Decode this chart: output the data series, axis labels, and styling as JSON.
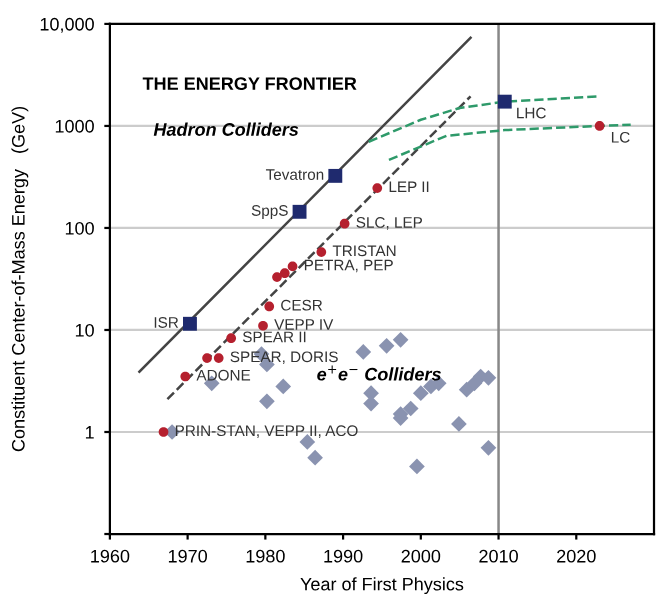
{
  "chart_data": {
    "type": "scatter",
    "title": "THE ENERGY FRONTIER",
    "xlabel": "Year of First Physics",
    "ylabel": "Constituent Center-of-Mass Energy   (GeV)",
    "log": "y",
    "xlim": [
      1960,
      2030
    ],
    "ylim": [
      0.1,
      10000
    ],
    "xticks": [
      1960,
      1970,
      1980,
      1990,
      2000,
      2010,
      2020
    ],
    "yticks": [
      {
        "value": 0.1,
        "label": null
      },
      1,
      10,
      100,
      1000,
      {
        "value": 10000,
        "label": "10,000"
      }
    ],
    "grid": "y",
    "legend": false,
    "ref_lines": [
      {
        "axis": "x",
        "value": 2010,
        "color": "#888888"
      }
    ],
    "series": [
      {
        "type": "line",
        "color": "#444444",
        "line_style": "solid",
        "marker": "none",
        "x": [
          1963.8,
          2006.4
        ],
        "values": [
          3.9,
          7300
        ]
      },
      {
        "type": "line",
        "color": "#444444",
        "line_style": "dashed",
        "marker": "none",
        "x": [
          1967.4,
          2006.4
        ],
        "values": [
          2.1,
          1950
        ]
      },
      {
        "type": "line",
        "color": "#2e9a6a",
        "line_style": "dashed",
        "marker": "none",
        "x": [
          1993.3,
          2000,
          2005,
          2010.8,
          2022.8
        ],
        "values": [
          700,
          1150,
          1500,
          1730,
          1950
        ]
      },
      {
        "type": "line",
        "color": "#2e9a6a",
        "line_style": "dashed",
        "marker": "none",
        "x": [
          1995.9,
          2003.3,
          2010.8,
          2023,
          2027
        ],
        "values": [
          465,
          800,
          910,
          1000,
          1030
        ]
      },
      {
        "color": "#8a93b0",
        "marker": "diamond",
        "x": [
          1968,
          1973.1,
          1979.5,
          1980.2,
          1980.2,
          1982.3,
          1985.4,
          1986.4,
          1992.6,
          1995.6,
          1997.4,
          1993.6,
          1993.6,
          1997.4,
          1997.4,
          1998.7,
          2000,
          2001.3,
          2002.3,
          1999.5,
          2004.9,
          2005.9,
          2006.9,
          2007.7,
          2008.7,
          2008.7
        ],
        "values": [
          1.0,
          3.0,
          5.8,
          4.6,
          2.0,
          2.8,
          0.8,
          0.56,
          6.1,
          7.0,
          8.0,
          2.4,
          1.9,
          1.5,
          1.37,
          1.7,
          2.4,
          2.8,
          3.0,
          0.46,
          1.2,
          2.6,
          3.0,
          3.5,
          3.4,
          0.7
        ]
      },
      {
        "color": "#b5202e",
        "marker": "circle",
        "x": [
          1966.9,
          1969.7,
          1972.5,
          1974,
          1975.6,
          1979.7,
          1980.5,
          1981.5,
          1982.5,
          1983.5,
          1987.2,
          1990.2,
          1994.4,
          2023
        ],
        "values": [
          1,
          3.5,
          5.3,
          5.3,
          8.3,
          11,
          17,
          33,
          36,
          42,
          58,
          110,
          246,
          1000
        ]
      },
      {
        "color": "#1f2a6e",
        "marker": "square",
        "x": [
          1970.3,
          1984.4,
          1989,
          2010.8
        ],
        "values": [
          11.5,
          144,
          324,
          1730
        ]
      }
    ],
    "annotations": [
      "Hadron Colliders",
      "e$^{+}$e$^{−}$ Colliders",
      {
        "text": "Tevatron",
        "x": 1989,
        "y": 324
      },
      {
        "text": "SppS",
        "x": 1984.4,
        "y": 144
      },
      {
        "text": "ISR",
        "x": 1970.3,
        "y": 11.5
      },
      {
        "text": "LHC",
        "x": 2010.8,
        "y": 1730
      },
      {
        "text": "LC",
        "x": 2023,
        "y": 1000
      },
      {
        "text": "LEP II",
        "x": 1994.4,
        "y": 246
      },
      {
        "text": "SLC, LEP",
        "x": 1990.2,
        "y": 110
      },
      {
        "text": "TRISTAN",
        "x": 1987.2,
        "y": 58
      },
      {
        "text": "PETRA, PEP",
        "x": 1983.5,
        "y": 42
      },
      {
        "text": "CESR",
        "x": 1980.5,
        "y": 17
      },
      {
        "text": "VEPP IV",
        "x": 1979.7,
        "y": 11
      },
      {
        "text": "SPEAR II",
        "x": 1975.6,
        "y": 8.3
      },
      {
        "text": "SPEAR, DORIS",
        "x": 1974,
        "y": 5.3
      },
      {
        "text": "ADONE",
        "x": 1969.7,
        "y": 3.5
      },
      {
        "text": "PRIN-STAN, VEPP II, ACO",
        "x": 1966.9,
        "y": 1
      }
    ]
  }
}
